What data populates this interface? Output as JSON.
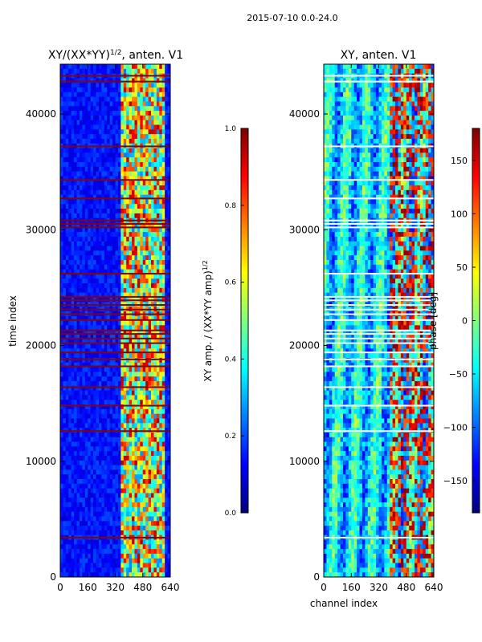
{
  "suptitle": "2015-07-10 0.0-24.0",
  "colors": {
    "jet_stops": [
      "#00007f",
      "#0000ff",
      "#007fff",
      "#00ffff",
      "#7fff7f",
      "#ffff00",
      "#ff7f00",
      "#ff0000",
      "#7f0000"
    ],
    "flag_line": "#8b0000",
    "axis": "#000000",
    "background": "#ffffff"
  },
  "chart_data": [
    {
      "type": "heatmap",
      "name": "amplitude-ratio",
      "title_main": "XY/(XX*YY)",
      "title_sup": "1/2",
      "title_rest": ", anten. V1",
      "xlabel": "",
      "ylabel": "time index",
      "x_range": [
        0,
        640
      ],
      "y_range": [
        0,
        44300
      ],
      "x_ticks": [
        0,
        160,
        320,
        480,
        640
      ],
      "y_ticks": [
        0,
        10000,
        20000,
        30000,
        40000
      ],
      "active_channel_range": [
        350,
        610
      ],
      "flagged_rows": [
        3400,
        12600,
        14800,
        16400,
        18200,
        18800,
        19400,
        20200,
        20600,
        21000,
        21300,
        22200,
        22700,
        23100,
        23500,
        23900,
        24200,
        26200,
        30200,
        30500,
        30800,
        32700,
        34300,
        37200,
        42800,
        43300
      ],
      "colorbar": {
        "label_main": "XY amp. / (XX*YY amp)",
        "label_sup": "1/2",
        "range": [
          0.0,
          1.0
        ],
        "ticks": [
          "0.0",
          "0.2",
          "0.4",
          "0.6",
          "0.8",
          "1.0"
        ]
      }
    },
    {
      "type": "heatmap",
      "name": "phase",
      "title_main": "XY, anten. V1",
      "xlabel": "channel index",
      "ylabel": "",
      "x_range": [
        0,
        640
      ],
      "y_range": [
        0,
        44300
      ],
      "x_ticks": [
        0,
        160,
        320,
        480,
        640
      ],
      "y_ticks": [
        0,
        10000,
        20000,
        30000,
        40000
      ],
      "flagged_rows": [
        3400,
        12600,
        14800,
        16400,
        18200,
        18800,
        19400,
        20200,
        20600,
        21000,
        21300,
        22200,
        22700,
        23100,
        23500,
        23900,
        24200,
        26200,
        30200,
        30500,
        30800,
        32700,
        34300,
        37200,
        42800,
        43300
      ],
      "colorbar": {
        "label_main": "phase [deg]",
        "range": [
          -180,
          180
        ],
        "ticks": [
          "150",
          "100",
          "50",
          "0",
          "−50",
          "−100",
          "−150"
        ],
        "tick_values": [
          150,
          100,
          50,
          0,
          -50,
          -100,
          -150
        ]
      }
    }
  ]
}
